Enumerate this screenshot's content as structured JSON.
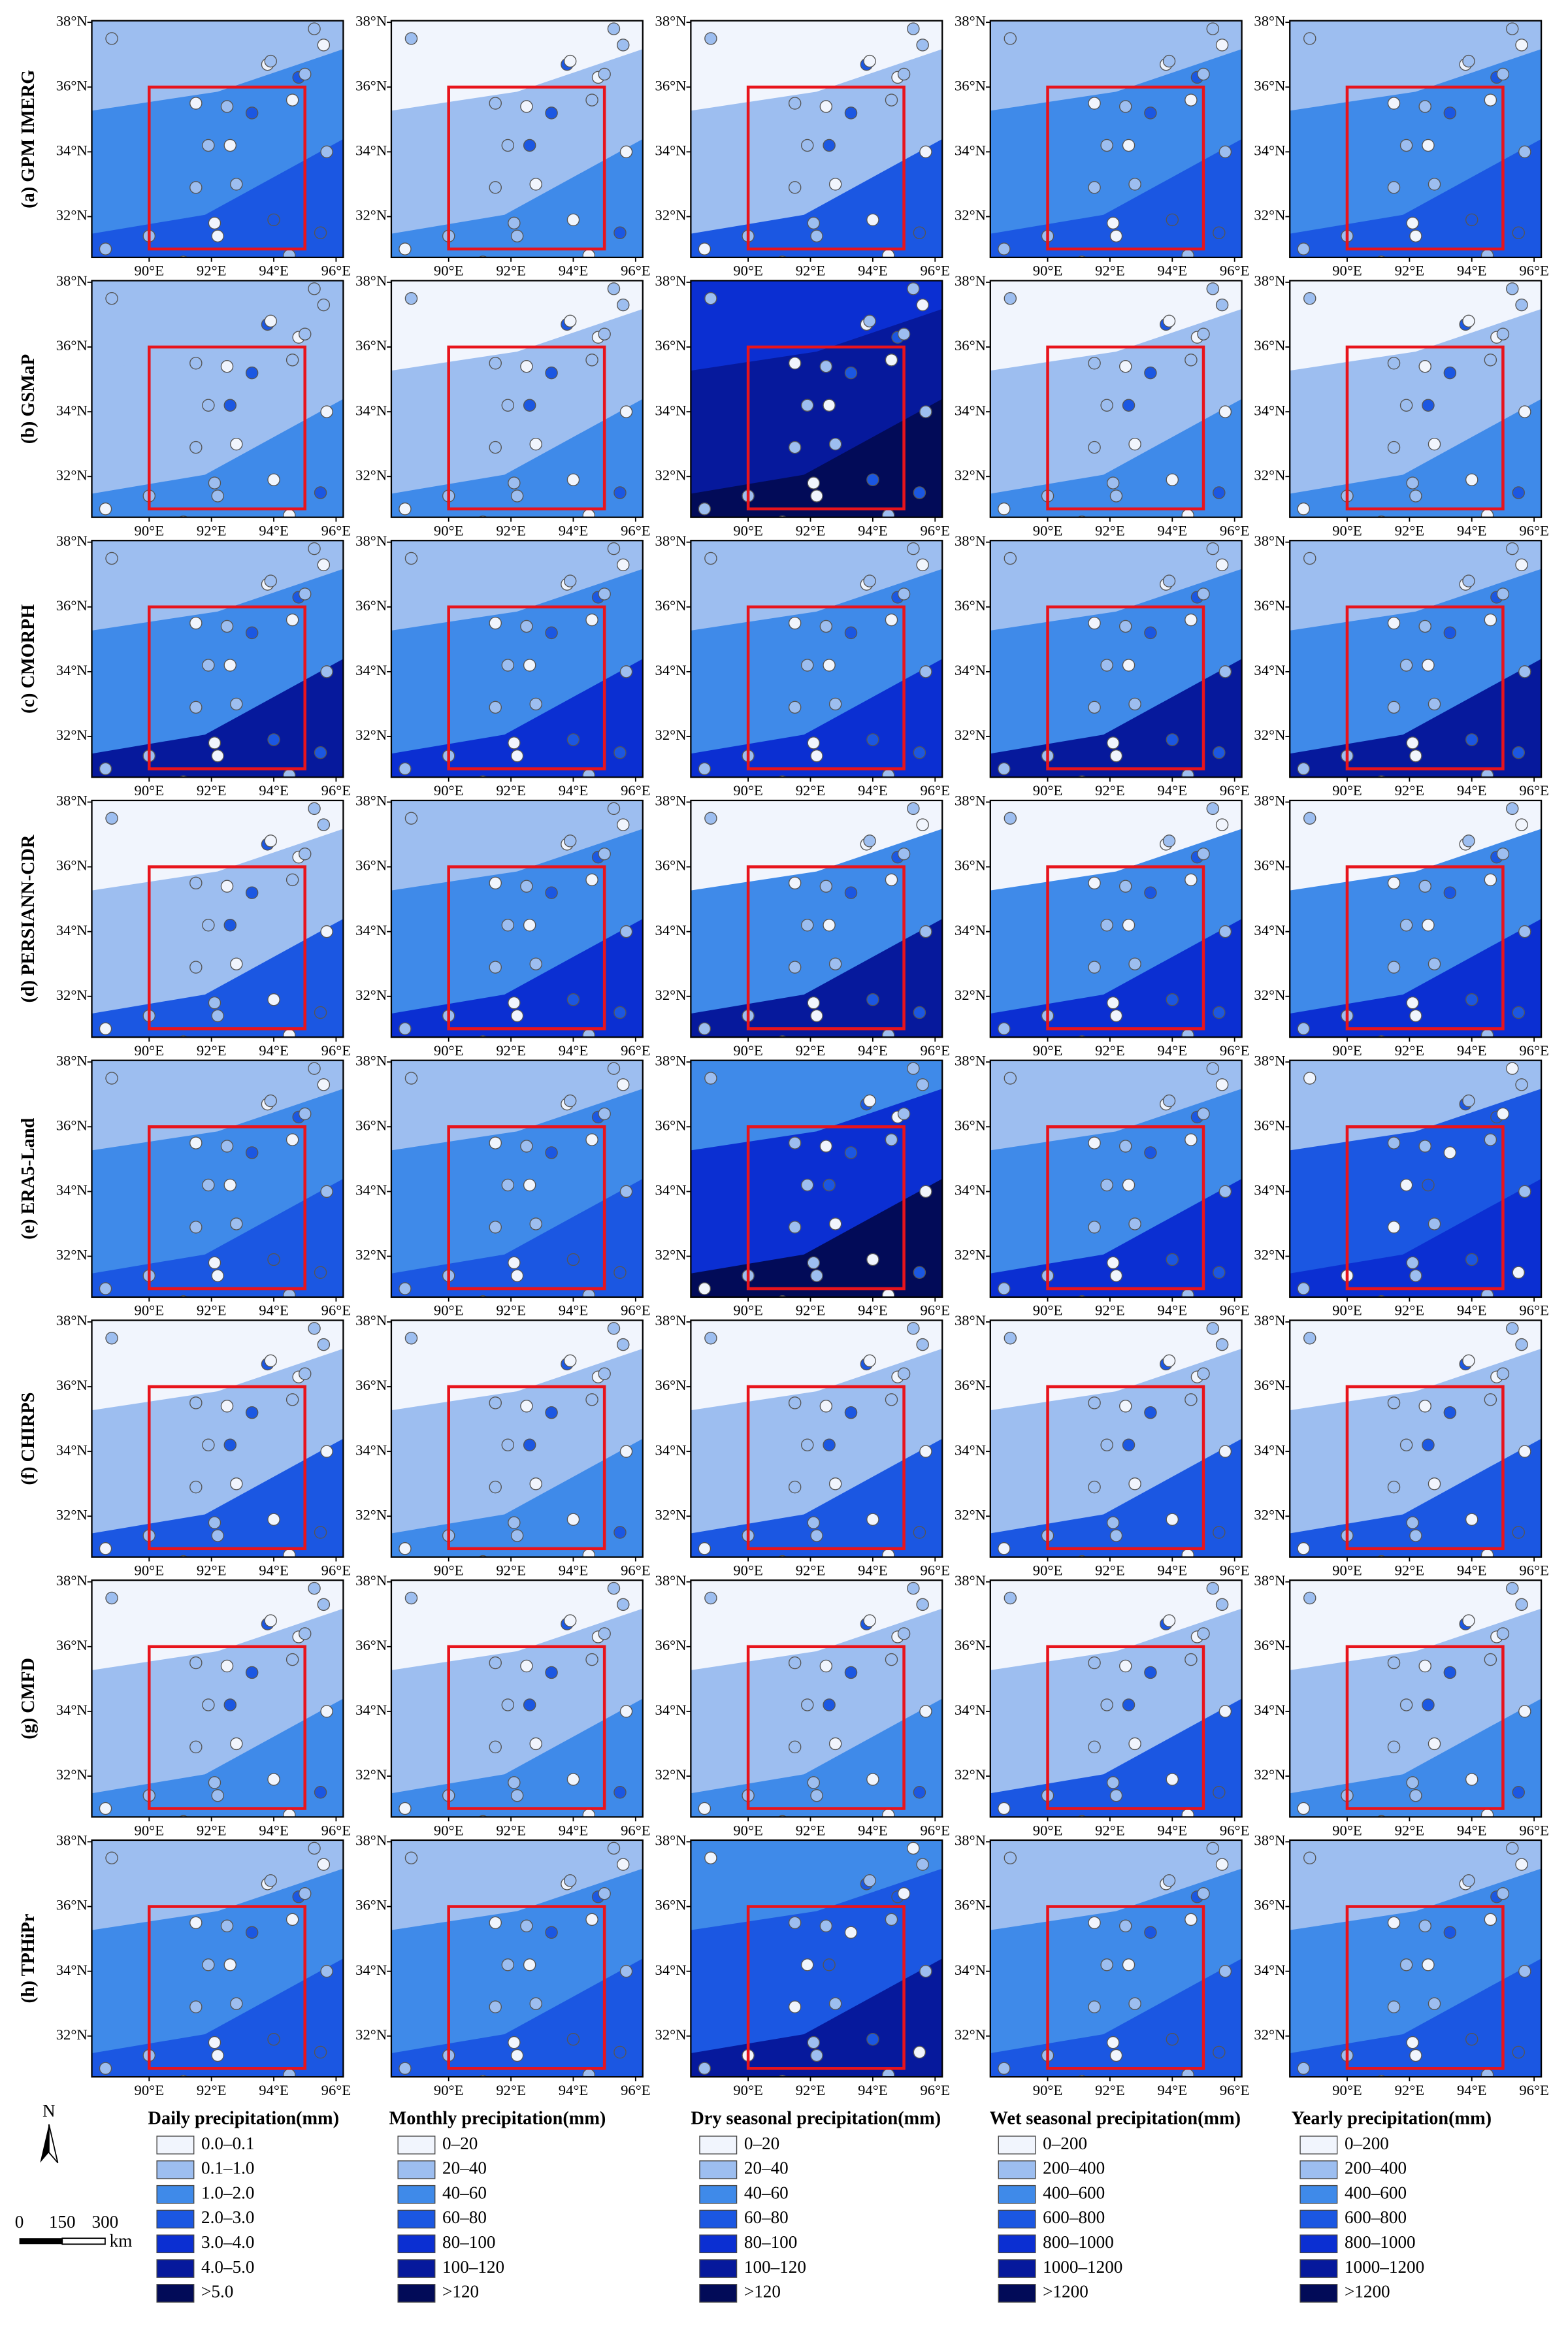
{
  "rows": [
    "(a) GPM IMERG",
    "(b) GSMaP",
    "(c) CMORPH",
    "(d) PERSIANN-CDR",
    "(e) ERA5-Land",
    "(f) CHIRPS",
    "(g) CMFD",
    "(h) TPHiPr"
  ],
  "axis": {
    "lat_labels": [
      "32°N",
      "34°N",
      "36°N",
      "38°N"
    ],
    "lon_labels": [
      "90°E",
      "92°E",
      "94°E",
      "96°E"
    ]
  },
  "legend_colors": [
    "#f1f5fd",
    "#9dbef0",
    "#3f8ae9",
    "#1b57e2",
    "#0b2fd2",
    "#06199c",
    "#020b58"
  ],
  "legends": [
    {
      "title": "Daily precipitation(mm)",
      "items": [
        "0.0–0.1",
        "0.1–1.0",
        "1.0–2.0",
        "2.0–3.0",
        "3.0–4.0",
        "4.0–5.0",
        ">5.0"
      ]
    },
    {
      "title": "Monthly precipitation(mm)",
      "items": [
        "0–20",
        "20–40",
        "40–60",
        "60–80",
        "80–100",
        "100–120",
        ">120"
      ]
    },
    {
      "title": "Dry seasonal precipitation(mm)",
      "items": [
        "0–20",
        "20–40",
        "40–60",
        "60–80",
        "80–100",
        "100–120",
        ">120"
      ]
    },
    {
      "title": "Wet seasonal precipitation(mm)",
      "items": [
        "0–200",
        "200–400",
        "400–600",
        "600–800",
        "800–1000",
        "1000–1200",
        ">1200"
      ]
    },
    {
      "title": "Yearly precipitation(mm)",
      "items": [
        "0–200",
        "200–400",
        "400–600",
        "600–800",
        "800–1000",
        "1000–1200",
        ">1200"
      ]
    }
  ],
  "north": "N",
  "scale": {
    "labels": [
      "0",
      "150",
      "300"
    ],
    "unit": "km"
  }
}
